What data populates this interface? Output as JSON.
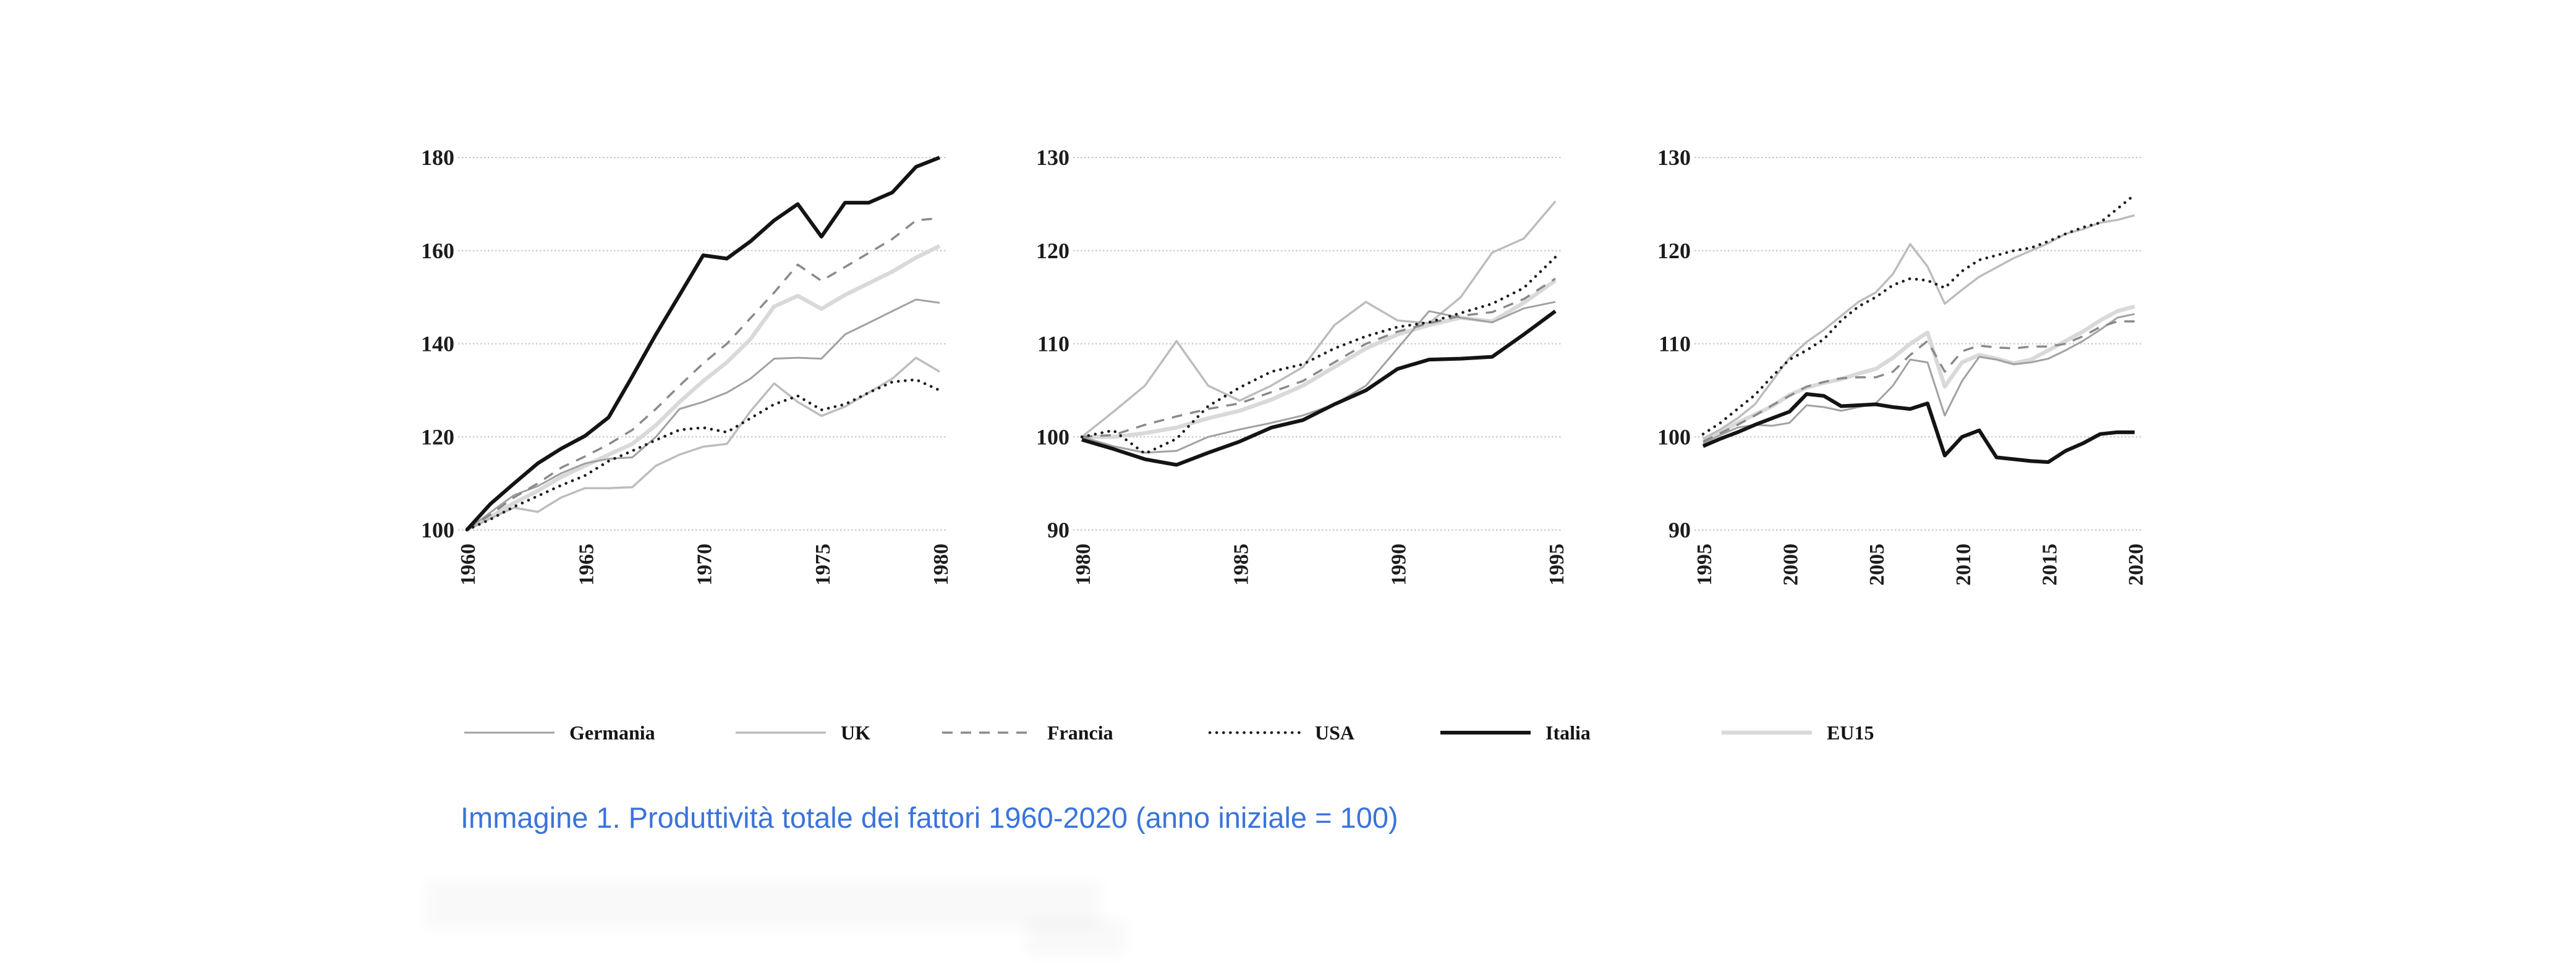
{
  "caption": {
    "text": "Immagine 1. Produttività totale dei fattori 1960-2020 (anno iniziale = 100)",
    "color": "#3b74d9"
  },
  "legend": {
    "position": "bottom",
    "items": [
      {
        "key": "germania",
        "label": "Germania"
      },
      {
        "key": "uk",
        "label": "UK"
      },
      {
        "key": "francia",
        "label": "Francia"
      },
      {
        "key": "usa",
        "label": "USA"
      },
      {
        "key": "italia",
        "label": "Italia"
      },
      {
        "key": "eu15",
        "label": "EU15"
      }
    ]
  },
  "series_styles": {
    "germania": {
      "color": "#a1a1a1",
      "width": 3,
      "dash": "",
      "cap": "butt"
    },
    "uk": {
      "color": "#bdbdbd",
      "width": 3.5,
      "dash": "",
      "cap": "butt"
    },
    "francia": {
      "color": "#8a8a8a",
      "width": 3.5,
      "dash": "17 13",
      "cap": "butt"
    },
    "usa": {
      "color": "#1c1c1c",
      "width": 4.6,
      "dash": "0.1 11",
      "cap": "round"
    },
    "italia": {
      "color": "#141414",
      "width": 6,
      "dash": "",
      "cap": "butt"
    },
    "eu15": {
      "color": "#d9d9d9",
      "width": 6.5,
      "dash": "",
      "cap": "butt"
    }
  },
  "grid_color": "#c4c4c4",
  "chart_data": [
    {
      "type": "line",
      "title": "",
      "xlabel": "",
      "ylabel": "",
      "grid": true,
      "x_ticks": [
        1960,
        1965,
        1970,
        1975,
        1980
      ],
      "y_ticks": [
        100,
        120,
        140,
        160,
        180
      ],
      "x_range": [
        1960,
        1980
      ],
      "ylim": [
        100,
        180
      ],
      "x": [
        1960,
        1961,
        1962,
        1963,
        1964,
        1965,
        1966,
        1967,
        1968,
        1969,
        1970,
        1971,
        1972,
        1973,
        1974,
        1975,
        1976,
        1977,
        1978,
        1979,
        1980
      ],
      "series": [
        {
          "key": "germania",
          "name": "Germania",
          "values": [
            100,
            103.8,
            107.5,
            109.4,
            112.2,
            114.3,
            115.3,
            115.6,
            120,
            126,
            127.5,
            129.5,
            132.5,
            136.8,
            137,
            136.8,
            142,
            144.5,
            147,
            149.5,
            148.8
          ]
        },
        {
          "key": "uk",
          "name": "UK",
          "values": [
            100,
            102.5,
            104.8,
            103.9,
            107,
            109,
            109,
            109.2,
            113.8,
            116.2,
            117.9,
            118.5,
            125.5,
            131.5,
            127.5,
            124.5,
            126.5,
            129.5,
            132.5,
            137,
            134
          ]
        },
        {
          "key": "francia",
          "name": "Francia",
          "values": [
            100,
            103.3,
            107,
            110,
            113.4,
            115.8,
            118.4,
            121.5,
            126,
            131,
            135.8,
            140,
            145.5,
            151,
            157,
            153.5,
            156.5,
            159.5,
            162.5,
            166.5,
            167
          ]
        },
        {
          "key": "usa",
          "name": "USA",
          "values": [
            100,
            102.3,
            105,
            107.3,
            109.6,
            111.7,
            114.8,
            117,
            119.3,
            121.5,
            122,
            121,
            124,
            127,
            128.8,
            125.8,
            127,
            129.5,
            131.8,
            132.3,
            130
          ]
        },
        {
          "key": "italia",
          "name": "Italia",
          "values": [
            100,
            105.6,
            110,
            114.3,
            117.5,
            120.2,
            124.2,
            133,
            142,
            150.5,
            159,
            158.3,
            162,
            166.5,
            170,
            163,
            170.3,
            170.3,
            172.5,
            178,
            180
          ]
        },
        {
          "key": "eu15",
          "name": "EU15",
          "values": [
            100,
            102.8,
            105.8,
            108.4,
            111.4,
            113.8,
            116.2,
            118.5,
            122.5,
            127.5,
            132,
            136,
            141,
            148,
            150.3,
            147.5,
            150.5,
            153,
            155.5,
            158.5,
            161
          ]
        }
      ]
    },
    {
      "type": "line",
      "title": "",
      "xlabel": "",
      "ylabel": "",
      "grid": true,
      "x_ticks": [
        1980,
        1985,
        1990,
        1995
      ],
      "y_ticks": [
        90,
        100,
        110,
        120,
        130
      ],
      "x_range": [
        1980,
        1995
      ],
      "ylim": [
        90,
        130
      ],
      "x": [
        1980,
        1981,
        1982,
        1983,
        1984,
        1985,
        1986,
        1987,
        1988,
        1989,
        1990,
        1991,
        1992,
        1993,
        1994,
        1995
      ],
      "series": [
        {
          "key": "germania",
          "name": "Germania",
          "values": [
            100,
            99,
            98.3,
            98.5,
            100,
            100.8,
            101.5,
            102.3,
            103.5,
            105.5,
            109.5,
            113.5,
            112.8,
            112.3,
            113.8,
            114.5
          ]
        },
        {
          "key": "uk",
          "name": "UK",
          "values": [
            100,
            102.7,
            105.5,
            110.3,
            105.5,
            103.9,
            105.5,
            107.5,
            112,
            114.5,
            112.5,
            112.2,
            115,
            119.8,
            121.3,
            125.3
          ]
        },
        {
          "key": "francia",
          "name": "Francia",
          "values": [
            100,
            100.2,
            101.3,
            102.2,
            103,
            103.6,
            104.8,
            106,
            108,
            110,
            111.3,
            112.2,
            113,
            113.4,
            114.8,
            117
          ]
        },
        {
          "key": "usa",
          "name": "USA",
          "values": [
            100,
            100.7,
            98.2,
            99.8,
            103.3,
            105.3,
            107,
            107.8,
            109.5,
            110.8,
            111.8,
            112.3,
            113.3,
            114.3,
            116,
            119.3
          ]
        },
        {
          "key": "italia",
          "name": "Italia",
          "values": [
            99.7,
            98.7,
            97.6,
            97,
            98.3,
            99.5,
            101,
            101.8,
            103.5,
            105,
            107.3,
            108.3,
            108.4,
            108.6,
            111,
            113.5
          ]
        },
        {
          "key": "eu15",
          "name": "EU15",
          "values": [
            100,
            100,
            100.4,
            101,
            102,
            102.8,
            104,
            105.5,
            107.5,
            109.5,
            111,
            112,
            112.8,
            112.4,
            114.4,
            116.8
          ]
        }
      ]
    },
    {
      "type": "line",
      "title": "",
      "xlabel": "",
      "ylabel": "",
      "grid": true,
      "x_ticks": [
        1995,
        2000,
        2005,
        2010,
        2015,
        2020
      ],
      "y_ticks": [
        90,
        100,
        110,
        120,
        130
      ],
      "x_range": [
        1995,
        2020
      ],
      "ylim": [
        90,
        130
      ],
      "x": [
        1995,
        1996,
        1997,
        1998,
        1999,
        2000,
        2001,
        2002,
        2003,
        2004,
        2005,
        2006,
        2007,
        2008,
        2009,
        2010,
        2011,
        2012,
        2013,
        2014,
        2015,
        2016,
        2017,
        2018,
        2019,
        2020
      ],
      "series": [
        {
          "key": "germania",
          "name": "Germania",
          "values": [
            99.3,
            100.2,
            101,
            101.3,
            101.2,
            101.5,
            103.4,
            103.2,
            102.8,
            103.2,
            103.6,
            105.5,
            108.3,
            108,
            102.3,
            106,
            108.6,
            108.3,
            107.8,
            108,
            108.4,
            109.3,
            110.3,
            111.5,
            112.8,
            113.2
          ]
        },
        {
          "key": "uk",
          "name": "UK",
          "values": [
            99.8,
            100.8,
            102,
            103.5,
            106,
            108.5,
            110.2,
            111.5,
            113,
            114.5,
            115.5,
            117.5,
            120.7,
            118.3,
            114.3,
            115.8,
            117.2,
            118.2,
            119.2,
            120,
            120.8,
            121.8,
            122.3,
            123,
            123.3,
            123.8
          ]
        },
        {
          "key": "francia",
          "name": "Francia",
          "values": [
            99.5,
            100.4,
            101.3,
            102.3,
            103.4,
            104.4,
            105.4,
            105.9,
            106.3,
            106.4,
            106.4,
            107,
            108.8,
            110.3,
            107,
            109.2,
            109.8,
            109.6,
            109.5,
            109.7,
            109.7,
            110,
            110.8,
            111.8,
            112.4,
            112.4
          ]
        },
        {
          "key": "usa",
          "name": "USA",
          "values": [
            100.3,
            101.5,
            103,
            104.5,
            106.5,
            108.3,
            109.3,
            110.5,
            112.5,
            114,
            115,
            116.3,
            117,
            116.8,
            116,
            117.8,
            119,
            119.5,
            120,
            120.3,
            121,
            121.8,
            122.5,
            123,
            124.5,
            126
          ]
        },
        {
          "key": "italia",
          "name": "Italia",
          "values": [
            99,
            99.8,
            100.5,
            101.3,
            102,
            102.7,
            104.6,
            104.4,
            103.3,
            103.4,
            103.5,
            103.2,
            103,
            103.6,
            98,
            100,
            100.7,
            97.8,
            97.6,
            97.4,
            97.3,
            98.5,
            99.3,
            100.3,
            100.5,
            100.5
          ]
        },
        {
          "key": "eu15",
          "name": "EU15",
          "values": [
            99.7,
            100.5,
            101.5,
            102.4,
            103.3,
            104.5,
            105.3,
            105.8,
            106.2,
            106.8,
            107.3,
            108.5,
            110,
            111.2,
            105.4,
            108,
            108.8,
            108.4,
            107.9,
            108.3,
            109.3,
            110.3,
            111.3,
            112.5,
            113.5,
            114
          ]
        }
      ]
    }
  ]
}
